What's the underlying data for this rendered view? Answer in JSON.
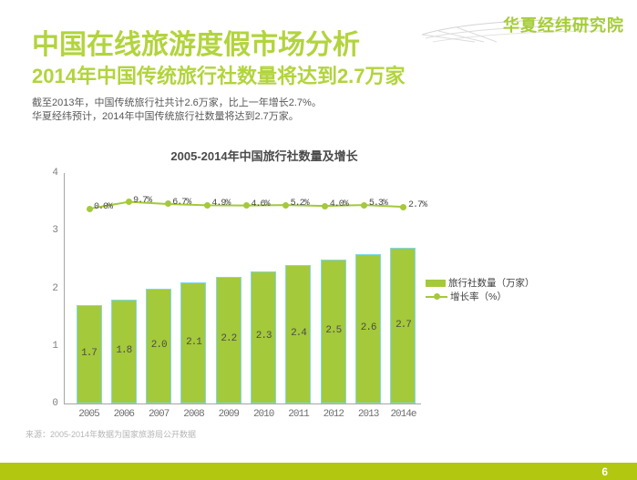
{
  "logo": {
    "text": "华夏经纬研究院"
  },
  "header": {
    "title": "中国在线旅游度假市场分析",
    "subtitle": "2014年中国传统旅行社数量将达到2.7万家",
    "body_line1": "截至2013年，中国传统旅行社共计2.6万家，比上一年增长2.7%。",
    "body_line2": "华夏经纬预计，2014年中国传统旅行社数量将达到2.7万家。"
  },
  "chart_data": {
    "type": "bar",
    "title": "2005-2014年中国旅行社数量及增长",
    "categories": [
      "2005",
      "2006",
      "2007",
      "2008",
      "2009",
      "2010",
      "2011",
      "2012",
      "2013",
      "2014e"
    ],
    "series": [
      {
        "name": "旅行社数量（万家）",
        "type": "bar",
        "values": [
          1.7,
          1.8,
          2.0,
          2.1,
          2.2,
          2.3,
          2.4,
          2.5,
          2.6,
          2.7
        ]
      },
      {
        "name": "增长率（%）",
        "type": "line",
        "values": [
          0.0,
          9.7,
          6.7,
          4.9,
          4.6,
          5.2,
          4.0,
          5.3,
          2.7
        ],
        "labels": [
          "0.0%",
          "9.7%",
          "6.7%",
          "4.9%",
          "4.6%",
          "5.2%",
          "4.0%",
          "5.3%",
          "2.7%"
        ]
      }
    ],
    "y_axis": {
      "ticks": [
        "0",
        "1",
        "2",
        "3",
        "4"
      ],
      "min": 0,
      "max": 4
    },
    "legend_position": "right",
    "grid": "off"
  },
  "source": "来源：2005-2014年数据为国家旅游局公开数据",
  "page": {
    "number": "6"
  },
  "colors": {
    "title_green": "#b2d43c",
    "bar_fill": "#a4c93a",
    "bar_border": "#82d8eb",
    "line_green": "#a4c93a",
    "footer_green": "#b2c70f",
    "body_gray": "#595959",
    "axis_gray": "#a6a6a6",
    "source_gray": "#b5b5b5"
  }
}
